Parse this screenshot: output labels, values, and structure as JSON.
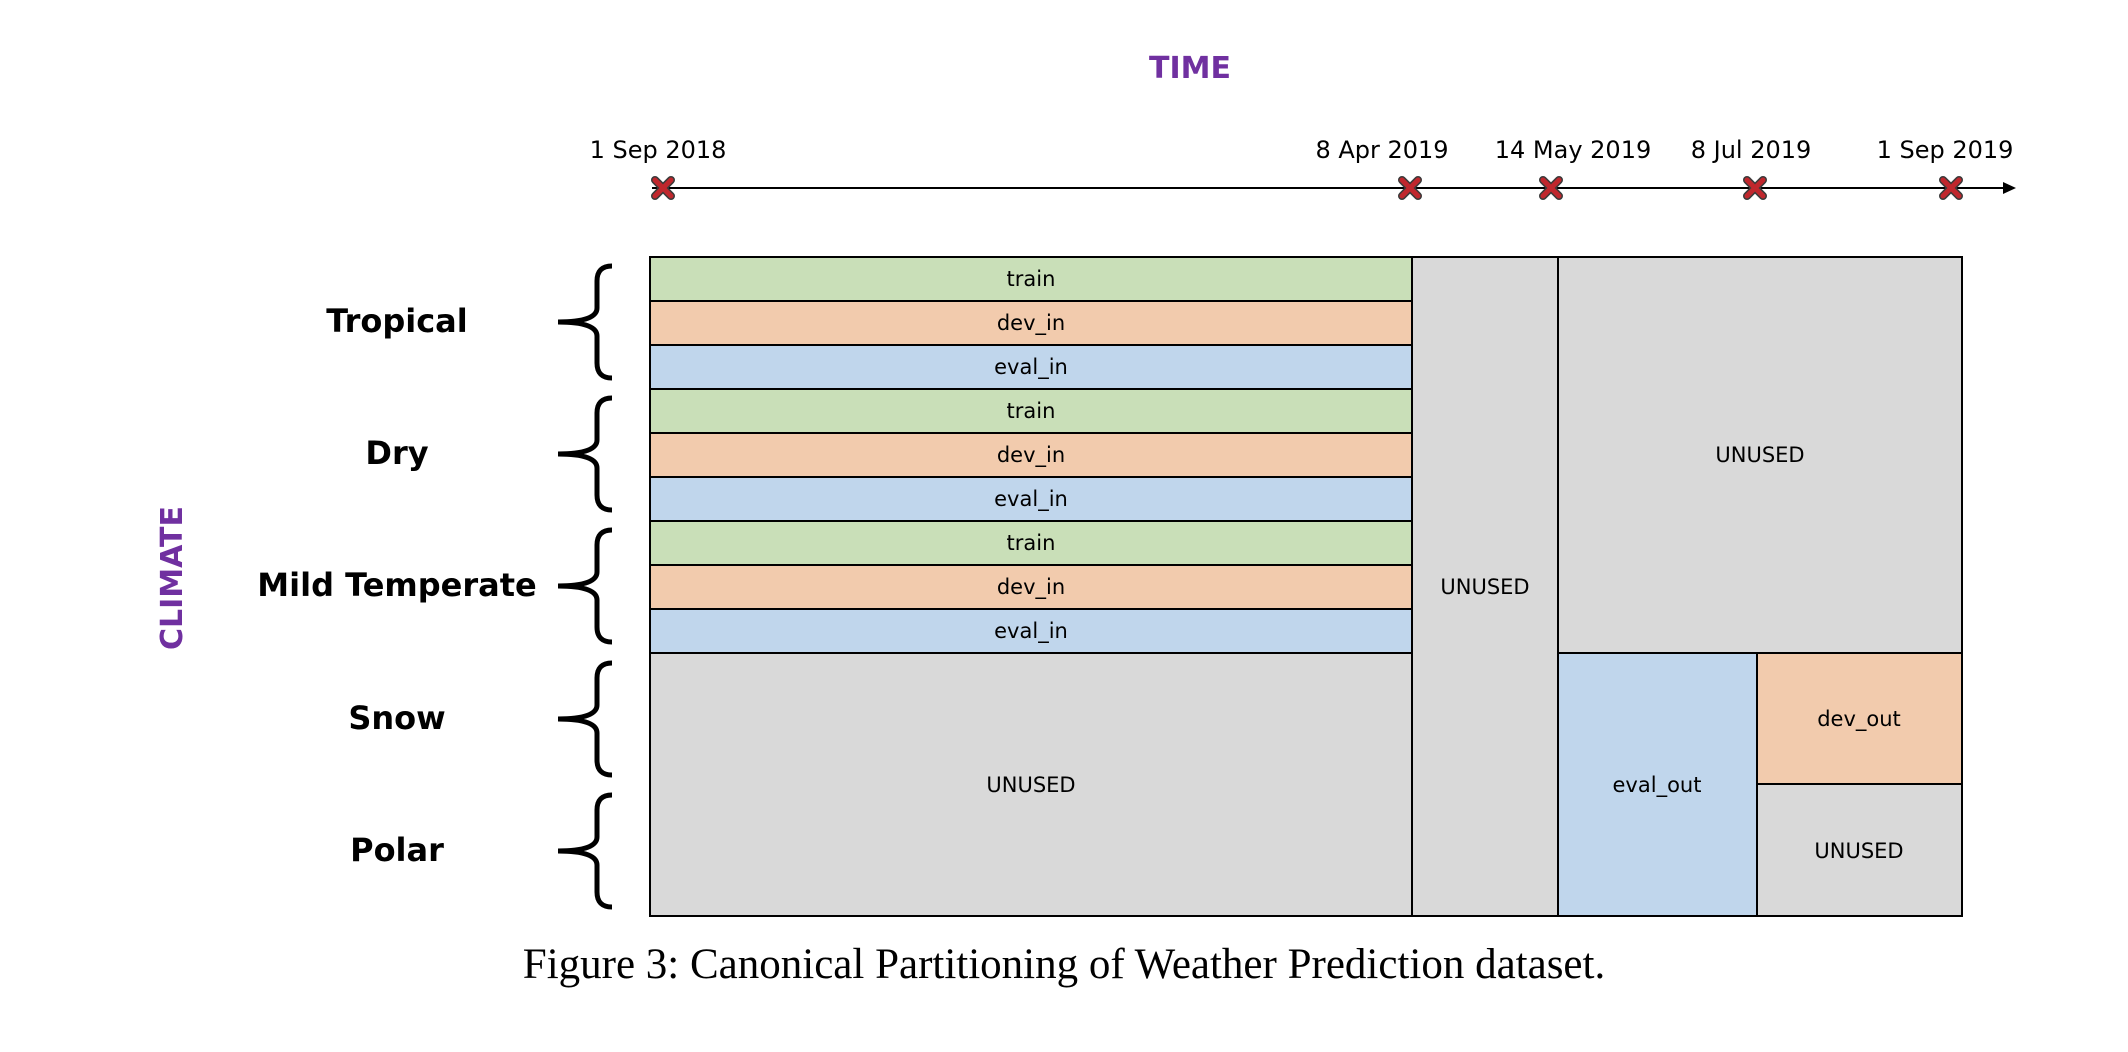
{
  "title_time": "TIME",
  "title_climate": "CLIMATE",
  "accent_color": "#7030A0",
  "colors": {
    "train": "#C9DFB8",
    "dev": "#F2CBAD",
    "eval": "#C0D6EC",
    "unused": "#D9D9D9",
    "marker": "#C0272D"
  },
  "timeline": {
    "dates": [
      "1 Sep 2018",
      "8 Apr 2019",
      "14 May 2019",
      "8 Jul 2019",
      "1 Sep 2019"
    ]
  },
  "climate_groups": [
    "Tropical",
    "Dry",
    "Mild Temperate",
    "Snow",
    "Polar"
  ],
  "cells": {
    "train_label": "train",
    "dev_in_label": "dev_in",
    "eval_in_label": "eval_in",
    "unused_label": "UNUSED",
    "eval_out_label": "eval_out",
    "dev_out_label": "dev_out"
  },
  "caption": "Figure 3: Canonical Partitioning of Weather Prediction dataset."
}
